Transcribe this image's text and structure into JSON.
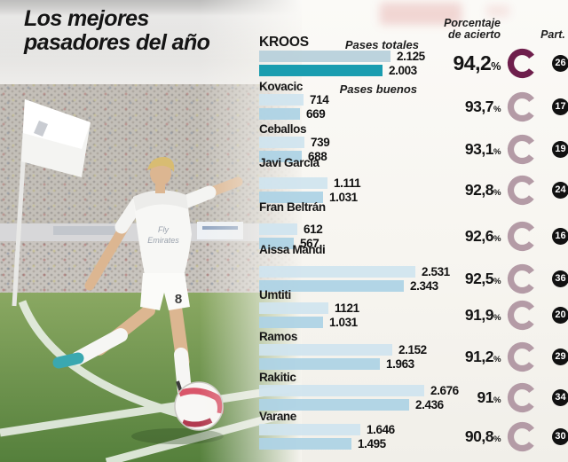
{
  "title": {
    "line1": "Los mejores",
    "line2": "pasadores del año"
  },
  "headers": {
    "percent_line1": "Porcentaje",
    "percent_line2": "de acierto",
    "part": "Part."
  },
  "legend": {
    "totales": "Pases totales",
    "buenos": "Pases buenos"
  },
  "meta": {
    "percent_sign": "%"
  },
  "colors": {
    "bar_total": "#cfe4ef",
    "bar_buenos": "#aed3e5",
    "kroos_bar_total": "#b6cfda",
    "kroos_bar_buenos": "#0e98ac",
    "donut": "#b49ba6",
    "donut_highlight": "#6e1f4c",
    "badge_bg": "#111111",
    "badge_text": "#ffffff"
  },
  "chart_data": {
    "type": "bar",
    "title": "Los mejores pasadores del año",
    "series_labels": [
      "Pases totales",
      "Pases buenos"
    ],
    "value_axis": "passes (count)",
    "extra_columns": [
      "Porcentaje de acierto",
      "Part."
    ],
    "players": [
      {
        "name": "KROOS",
        "totales": 2125,
        "buenos": 2003,
        "totales_label": "2.125",
        "buenos_label": "2.003",
        "percent": 94.2,
        "percent_label": "94,2",
        "part": "26",
        "highlight": true
      },
      {
        "name": "Kovacic",
        "totales": 714,
        "buenos": 669,
        "totales_label": "714",
        "buenos_label": "669",
        "percent": 93.7,
        "percent_label": "93,7",
        "part": "17",
        "highlight": false
      },
      {
        "name": "Ceballos",
        "totales": 739,
        "buenos": 688,
        "totales_label": "739",
        "buenos_label": "688",
        "percent": 93.1,
        "percent_label": "93,1",
        "part": "19",
        "highlight": false
      },
      {
        "name": "Javi García",
        "totales": 1111,
        "buenos": 1031,
        "totales_label": "1.111",
        "buenos_label": "1.031",
        "percent": 92.8,
        "percent_label": "92,8",
        "part": "24",
        "highlight": false
      },
      {
        "name": "Fran Beltrán",
        "totales": 612,
        "buenos": 567,
        "totales_label": "612",
        "buenos_label": "567",
        "percent": 92.6,
        "percent_label": "92,6",
        "part": "16",
        "highlight": false
      },
      {
        "name": "Aissa Mandi",
        "totales": 2531,
        "buenos": 2343,
        "totales_label": "2.531",
        "buenos_label": "2.343",
        "percent": 92.5,
        "percent_label": "92,5",
        "part": "36",
        "highlight": false
      },
      {
        "name": "Umtiti",
        "totales": 1121,
        "buenos": 1031,
        "totales_label": "1121",
        "buenos_label": "1.031",
        "percent": 91.9,
        "percent_label": "91,9",
        "part": "20",
        "highlight": false
      },
      {
        "name": "Ramos",
        "totales": 2152,
        "buenos": 1963,
        "totales_label": "2.152",
        "buenos_label": "1.963",
        "percent": 91.2,
        "percent_label": "91,2",
        "part": "29",
        "highlight": false
      },
      {
        "name": "Rakitic",
        "totales": 2676,
        "buenos": 2436,
        "totales_label": "2.676",
        "buenos_label": "2.436",
        "percent": 91.0,
        "percent_label": "91",
        "part": "34",
        "highlight": false
      },
      {
        "name": "Varane",
        "totales": 1646,
        "buenos": 1495,
        "totales_label": "1.646",
        "buenos_label": "1.495",
        "percent": 90.8,
        "percent_label": "90,8",
        "part": "30",
        "highlight": false
      }
    ]
  }
}
